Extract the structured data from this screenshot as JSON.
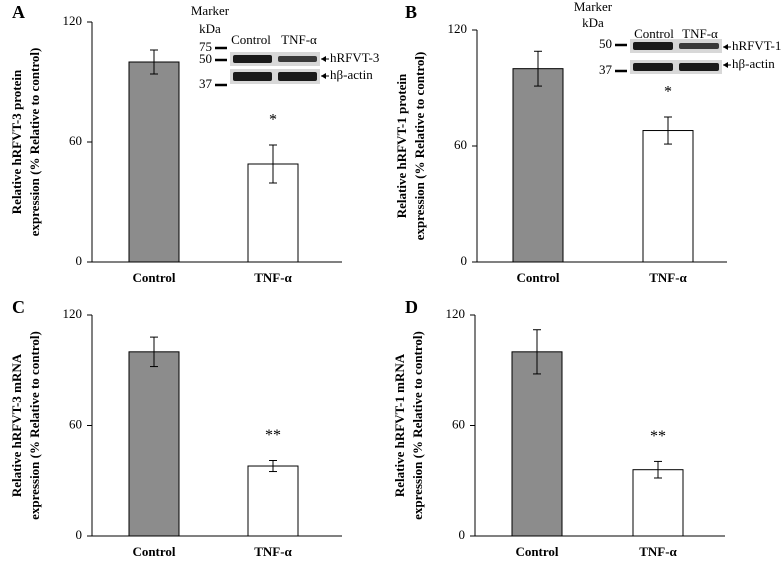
{
  "chart_data": [
    {
      "type": "bar",
      "panel": "A",
      "ylabel": [
        "Relative hRFVT-3 protein",
        "expression (%  Relative to control)"
      ],
      "categories": [
        "Control",
        "TNF-α"
      ],
      "values": [
        100,
        49
      ],
      "errors": [
        6,
        9.5
      ],
      "colors": [
        "#8c8c8c",
        "#ffffff"
      ],
      "ylim": [
        0,
        120
      ],
      "yticks": [
        0,
        60,
        120
      ],
      "annotation": "*",
      "inset": {
        "header": [
          "Marker",
          "kDa"
        ],
        "lanes": [
          "Control",
          "TNF-α"
        ],
        "markers": [
          75,
          50,
          37
        ],
        "bands": [
          "hRFVT-3",
          "hβ-actin"
        ]
      }
    },
    {
      "type": "bar",
      "panel": "B",
      "ylabel": [
        "Relative hRFVT-1 protein",
        "expression (%  Relative to control)"
      ],
      "categories": [
        "Control",
        "TNF-α"
      ],
      "values": [
        100,
        68
      ],
      "errors": [
        9,
        7
      ],
      "colors": [
        "#8c8c8c",
        "#ffffff"
      ],
      "ylim": [
        0,
        120
      ],
      "yticks": [
        0,
        60,
        120
      ],
      "annotation": "*",
      "inset": {
        "header": [
          "Marker",
          "kDa"
        ],
        "lanes": [
          "Control",
          "TNF-α"
        ],
        "markers": [
          50,
          37
        ],
        "bands": [
          "hRFVT-1",
          "hβ-actin"
        ]
      }
    },
    {
      "type": "bar",
      "panel": "C",
      "ylabel": [
        "Relative hRFVT-3 mRNA",
        "expression (%  Relative to control)"
      ],
      "categories": [
        "Control",
        "TNF-α"
      ],
      "values": [
        100,
        38
      ],
      "errors": [
        8,
        3
      ],
      "colors": [
        "#8c8c8c",
        "#ffffff"
      ],
      "ylim": [
        0,
        120
      ],
      "yticks": [
        0,
        60,
        120
      ],
      "annotation": "**"
    },
    {
      "type": "bar",
      "panel": "D",
      "ylabel": [
        "Relative hRFVT-1 mRNA",
        "expression (%  Relative to control)"
      ],
      "categories": [
        "Control",
        "TNF-α"
      ],
      "values": [
        100,
        36
      ],
      "errors": [
        12,
        4.5
      ],
      "colors": [
        "#8c8c8c",
        "#ffffff"
      ],
      "ylim": [
        0,
        120
      ],
      "yticks": [
        0,
        60,
        120
      ],
      "annotation": "**"
    }
  ]
}
